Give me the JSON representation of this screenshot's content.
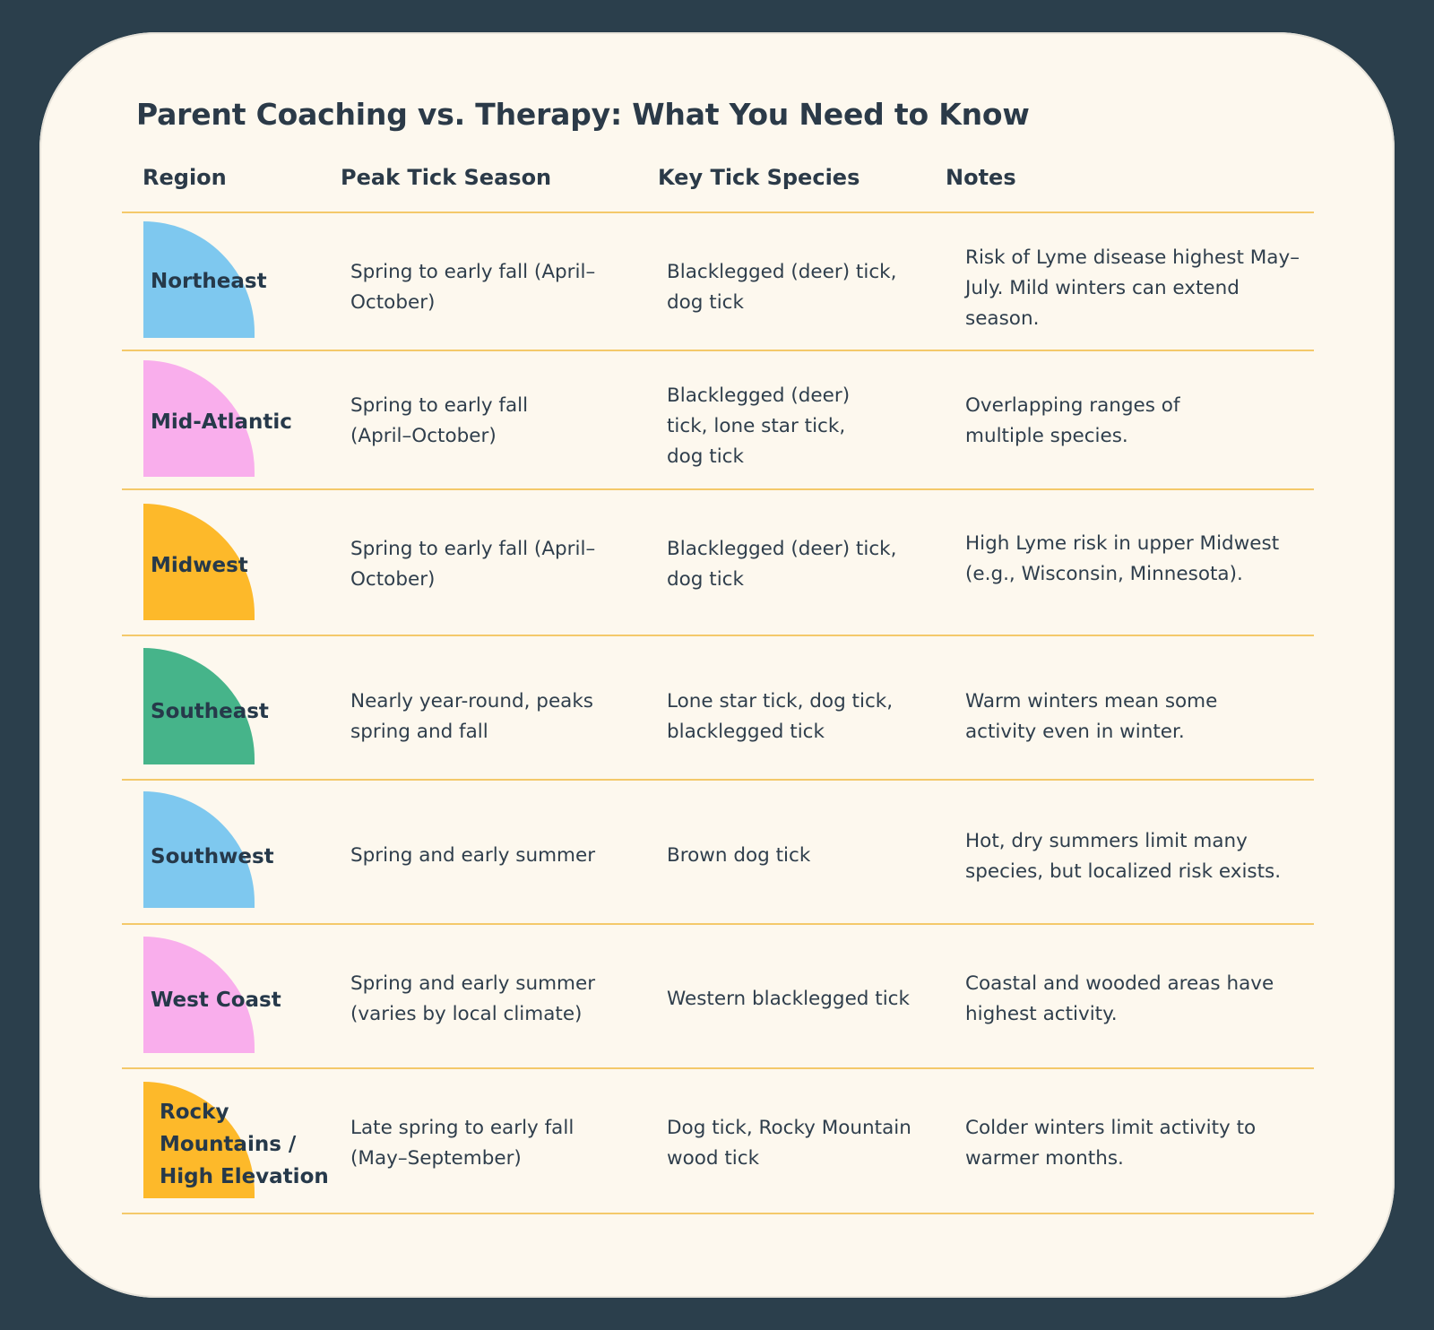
{
  "title": "Parent Coaching vs. Therapy: What You Need to Know",
  "headers": {
    "region": "Region",
    "season": "Peak Tick Season",
    "species": "Key Tick Species",
    "notes": "Notes"
  },
  "colors": {
    "blue": "#7ec8ef",
    "pink": "#f9aeec",
    "yellow": "#fdb92a",
    "green": "#46b48a",
    "divider": "#f4c96a",
    "background": "#2b3f4c",
    "card": "#fdf8ee"
  },
  "rows": [
    {
      "region": "Northeast",
      "shape_color": "blue",
      "season": "Spring to early fall (April–October)",
      "species": "Blacklegged (deer) tick, dog tick",
      "notes": "Risk of Lyme disease highest May–July. Mild winters can extend season."
    },
    {
      "region": "Mid-Atlantic",
      "shape_color": "pink",
      "season": "Spring to early fall (April–October)",
      "species": "Blacklegged (deer) tick, lone star tick, dog tick",
      "notes": "Overlapping ranges of multiple species."
    },
    {
      "region": "Midwest",
      "shape_color": "yellow",
      "season": "Spring to early fall (April–October)",
      "species": "Blacklegged (deer) tick, dog tick",
      "notes": "High Lyme risk in upper Midwest (e.g., Wisconsin, Minnesota)."
    },
    {
      "region": "Southeast",
      "shape_color": "green",
      "season": "Nearly year-round, peaks spring and fall",
      "species": "Lone star tick, dog tick, blacklegged tick",
      "notes": "Warm winters mean some activity even in winter."
    },
    {
      "region": "Southwest",
      "shape_color": "blue",
      "season": "Spring and early summer",
      "species": "Brown dog tick",
      "notes": "Hot, dry summers limit many species, but localized risk exists."
    },
    {
      "region": "West Coast",
      "shape_color": "pink",
      "season": "Spring and early summer (varies by local climate)",
      "species": "Western blacklegged tick",
      "notes": "Coastal and wooded areas have highest activity."
    },
    {
      "region": "Rocky Mountains / High Elevation",
      "shape_color": "yellow",
      "season": "Late spring to early fall (May–September)",
      "species": "Dog tick, Rocky Mountain wood tick",
      "notes": "Colder winters limit activity to warmer months."
    }
  ]
}
